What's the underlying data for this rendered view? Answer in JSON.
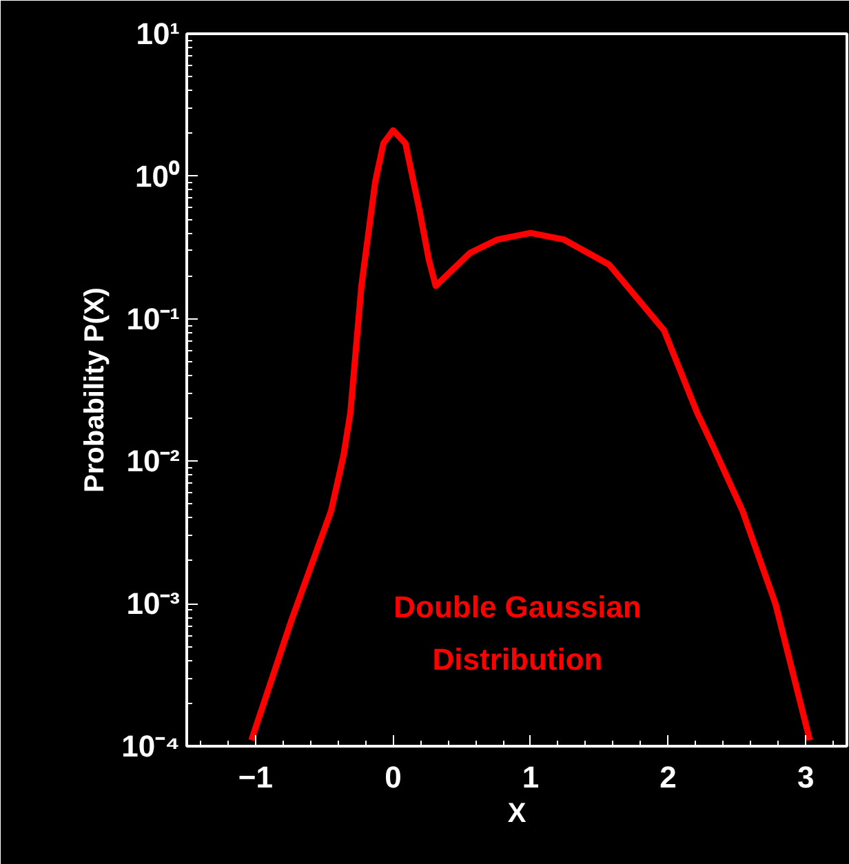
{
  "chart_data": {
    "type": "line",
    "xlabel": "X",
    "ylabel": "Probability P(X)",
    "log": "y",
    "grid": false,
    "marker": "none",
    "line_style": "solid",
    "xlim": [
      -1.5,
      3.3
    ],
    "ylim": [
      0.0001,
      10
    ],
    "xticks": [
      -1,
      0,
      1,
      2,
      3
    ],
    "yticks": [
      {
        "value": 0.0001,
        "label": "10⁻⁴"
      },
      {
        "value": 0.001,
        "label": "10⁻³"
      },
      {
        "value": 0.01,
        "label": "10⁻²"
      },
      {
        "value": 0.1,
        "label": "10⁻¹"
      },
      {
        "value": 1,
        "label": "10⁰"
      },
      {
        "value": 10,
        "label": "10¹"
      }
    ],
    "annotations": [
      "Double Gaussian\nDistribution"
    ],
    "series": [
      {
        "color": "#ff0000",
        "x": [
          -1.03,
          -0.74,
          -0.45,
          -0.36,
          -0.31,
          -0.23,
          -0.13,
          -0.07,
          0,
          0.09,
          0.19,
          0.26,
          0.31,
          0.56,
          0.76,
          1.0,
          1.24,
          1.57,
          1.97,
          2.21,
          2.33,
          2.54,
          2.78,
          3.03
        ],
        "values": [
          0.00011,
          0.00076,
          0.0045,
          0.011,
          0.022,
          0.17,
          0.91,
          1.7,
          2.1,
          1.7,
          0.59,
          0.26,
          0.17,
          0.29,
          0.36,
          0.4,
          0.36,
          0.24,
          0.083,
          0.022,
          0.0125,
          0.0045,
          0.001,
          0.00011
        ]
      }
    ]
  }
}
